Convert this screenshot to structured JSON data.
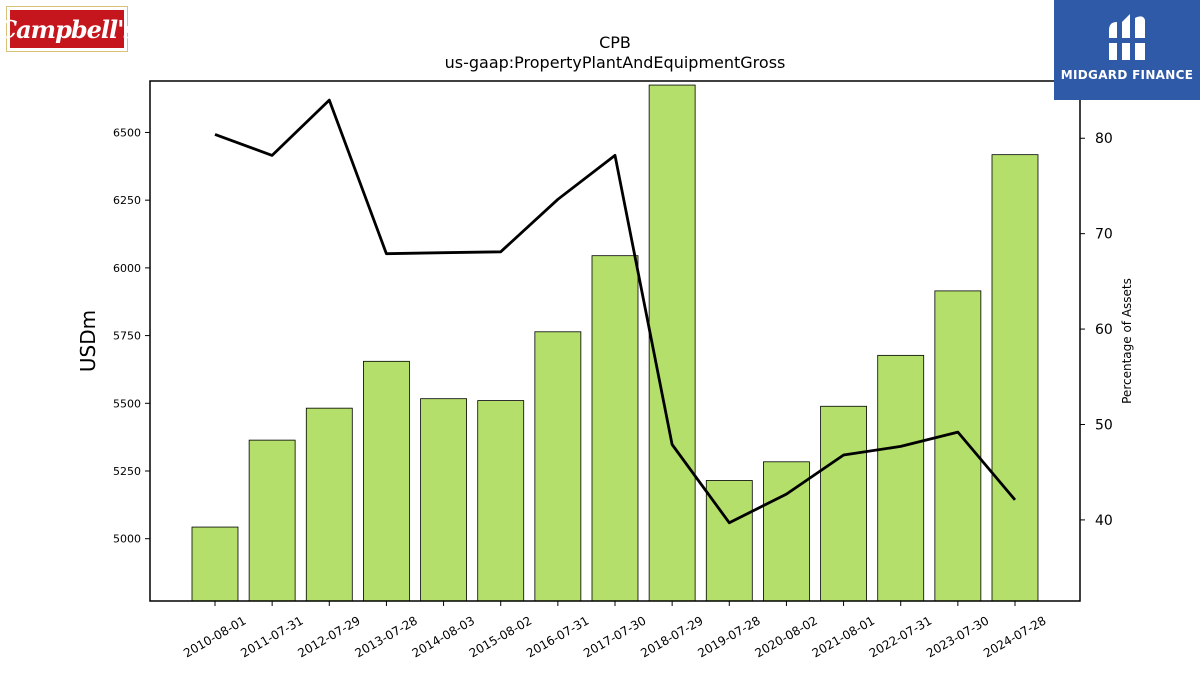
{
  "logos": {
    "left_text": "Campbell's",
    "right_text": "MIDGARD FINANCE"
  },
  "colors": {
    "bar_fill": "#b3df6a",
    "bar_stroke": "#000000",
    "line": "#000000",
    "logo_left_bg": "#c4161c",
    "logo_right_bg": "#2e5aa8"
  },
  "chart_data": {
    "type": "bar",
    "title": "CPB",
    "subtitle": "us-gaap:PropertyPlantAndEquipmentGross",
    "ylabel": "USDm",
    "y2label": "Percentage of Assets",
    "categories": [
      "2010-08-01",
      "2011-07-31",
      "2012-07-29",
      "2013-07-28",
      "2014-08-03",
      "2015-08-02",
      "2016-07-31",
      "2017-07-30",
      "2018-07-29",
      "2019-07-28",
      "2020-08-02",
      "2021-08-01",
      "2022-07-31",
      "2023-07-30",
      "2024-07-28"
    ],
    "series": [
      {
        "kind": "bar",
        "axis": "left",
        "values": [
          5043,
          5364,
          5482,
          5655,
          5517,
          5510,
          5764,
          6045,
          6675,
          5215,
          5284,
          5489,
          5677,
          5915,
          6418
        ]
      },
      {
        "kind": "line",
        "axis": "right",
        "values": [
          80.4,
          78.2,
          84.0,
          67.9,
          68.0,
          68.1,
          73.6,
          78.2,
          47.9,
          39.7,
          42.7,
          46.8,
          47.7,
          49.2,
          42.1
        ]
      }
    ],
    "ylim": [
      4770,
      6690
    ],
    "y2lim": [
      31.5,
      86.0
    ],
    "yticks": [
      5000,
      5250,
      5500,
      5750,
      6000,
      6250,
      6500
    ],
    "y2ticks": [
      40,
      50,
      60,
      70,
      80
    ],
    "grid": false,
    "legend": "none"
  }
}
